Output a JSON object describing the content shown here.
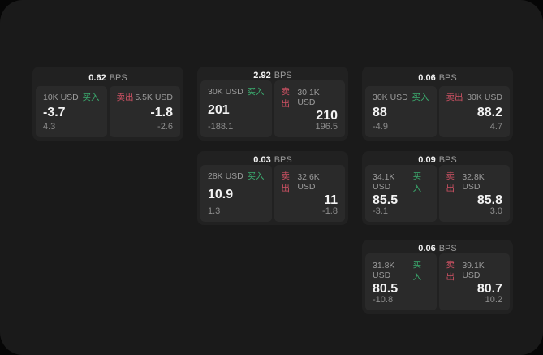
{
  "labels": {
    "bps_unit": "BPS",
    "buy": "买入",
    "sell": "卖出"
  },
  "colors": {
    "buy": "#3bac6f",
    "sell": "#cf5264",
    "window_bg": "#1a1a1a",
    "card_bg": "#212121",
    "panel_bg": "#2a2a2a",
    "text_primary": "#f3f3f3",
    "text_muted": "#9b9b9b",
    "text_dim": "#8d8d8d"
  },
  "cards": [
    {
      "bps": "0.62",
      "buy": {
        "notional": "10K USD",
        "price": "-3.7",
        "delta": "4.3"
      },
      "sell": {
        "notional": "5.5K USD",
        "price": "-1.8",
        "delta": "-2.6"
      }
    },
    {
      "bps": "2.92",
      "buy": {
        "notional": "30K USD",
        "price": "201",
        "delta": "-188.1"
      },
      "sell": {
        "notional": "30.1K USD",
        "price": "210",
        "delta": "196.5"
      }
    },
    {
      "bps": "0.06",
      "buy": {
        "notional": "30K USD",
        "price": "88",
        "delta": "-4.9"
      },
      "sell": {
        "notional": "30K USD",
        "price": "88.2",
        "delta": "4.7"
      }
    },
    {
      "bps": "0.03",
      "buy": {
        "notional": "28K USD",
        "price": "10.9",
        "delta": "1.3"
      },
      "sell": {
        "notional": "32.6K USD",
        "price": "11",
        "delta": "-1.8"
      }
    },
    {
      "bps": "0.09",
      "buy": {
        "notional": "34.1K USD",
        "price": "85.5",
        "delta": "-3.1"
      },
      "sell": {
        "notional": "32.8K USD",
        "price": "85.8",
        "delta": "3.0"
      }
    },
    {
      "bps": "0.06",
      "buy": {
        "notional": "31.8K USD",
        "price": "80.5",
        "delta": "-10.8"
      },
      "sell": {
        "notional": "39.1K USD",
        "price": "80.7",
        "delta": "10.2"
      }
    }
  ]
}
